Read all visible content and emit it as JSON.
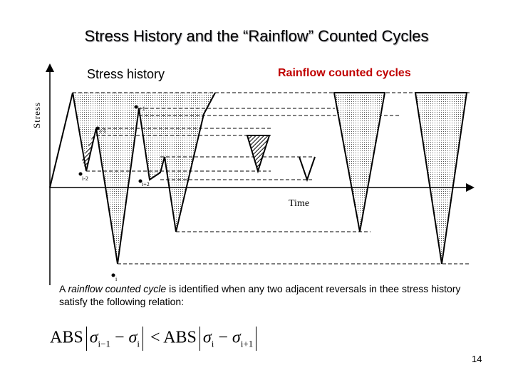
{
  "title": "Stress History and the “Rainflow” Counted Cycles",
  "labels": {
    "stress_history": "Stress history",
    "rainflow_cycles": "Rainflow counted cycles",
    "stress_axis": "Stress",
    "time_axis": "Time"
  },
  "points": {
    "i_minus_2": "i-2",
    "i_minus_1": "i-1",
    "i_plus_1": "i+1",
    "i_plus_2": "i+2",
    "i": "i"
  },
  "description": {
    "pre": "A ",
    "italic": "rainflow counted cycle",
    "post": " is identified when any two adjacent reversals in thee stress history satisfy the following relation:"
  },
  "formula": {
    "abs1": "ABS",
    "sigma_a": "σ",
    "sub_a": "i−1",
    "minus1": " − ",
    "sigma_b": "σ",
    "sub_b": "i",
    "lt": " < ",
    "abs2": "ABS",
    "sigma_c": "σ",
    "sub_c": "i",
    "minus2": " − ",
    "sigma_d": "σ",
    "sub_d": "i+1"
  },
  "page_number": "14"
}
